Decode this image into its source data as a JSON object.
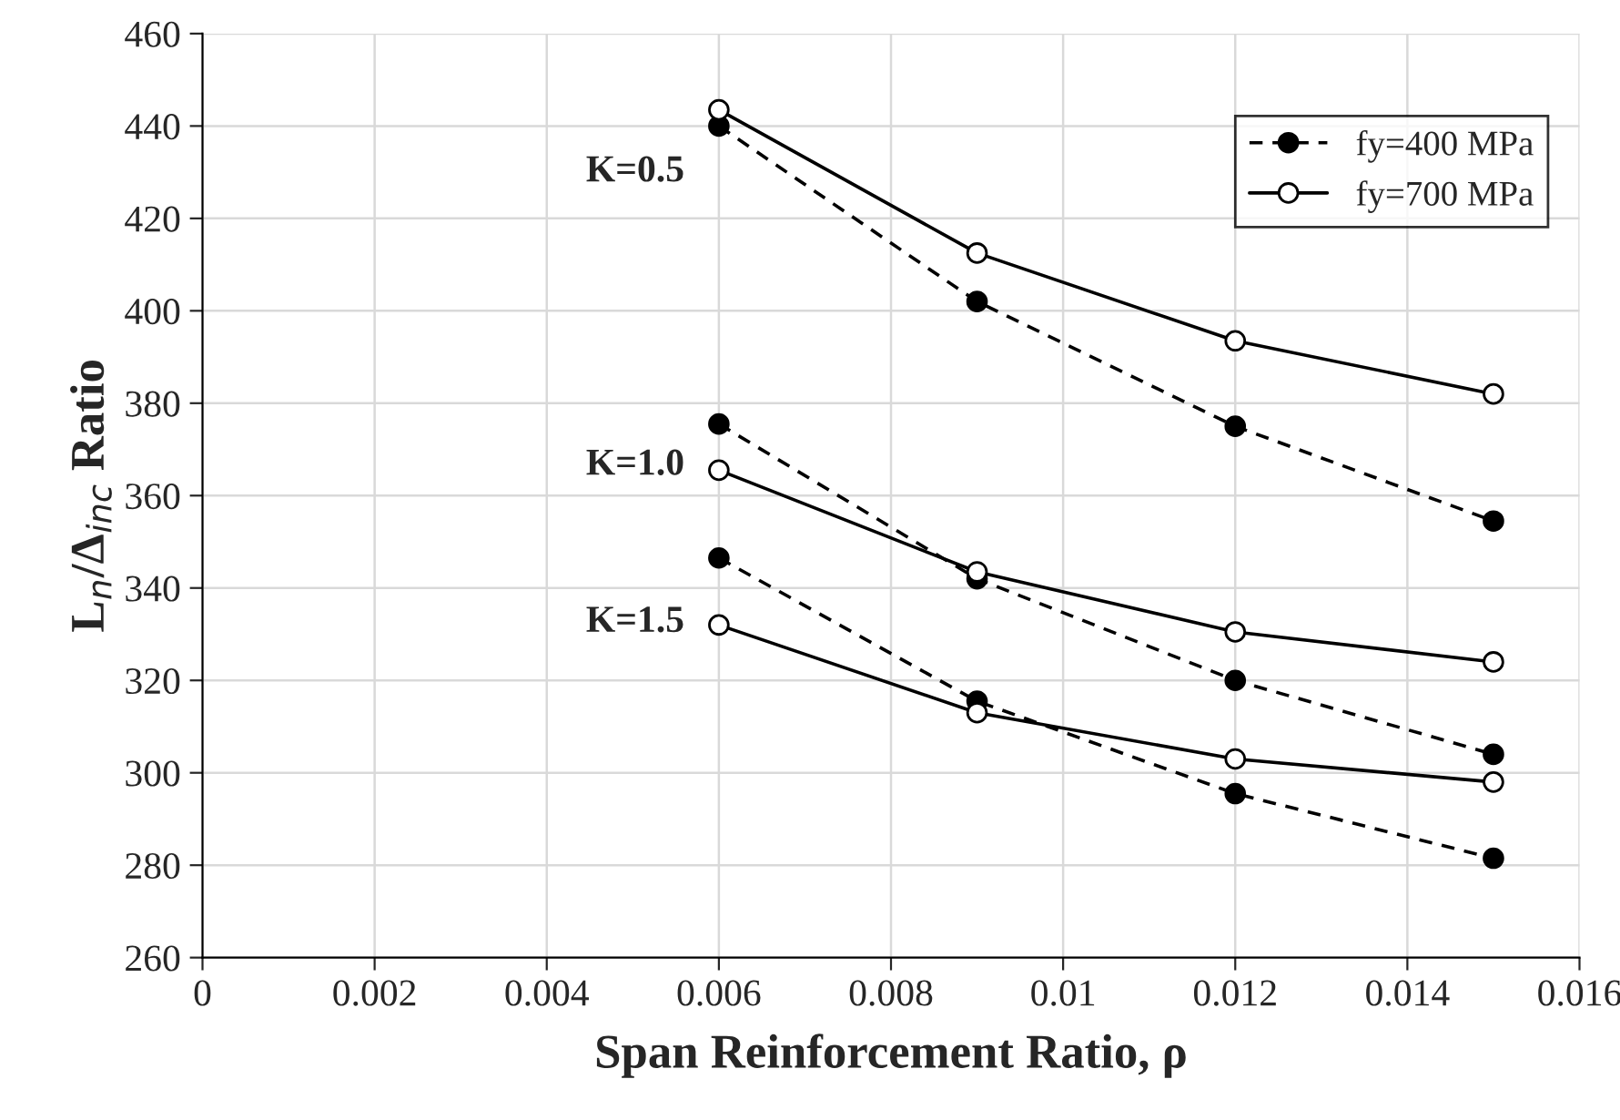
{
  "chart_data": {
    "type": "line",
    "xlabel": "Span Reinforcement Ratio, ρ",
    "ylabel": "L$_{n}$/Δ$_{inc}$ Ratio",
    "x": [
      0.006,
      0.009,
      0.012,
      0.015
    ],
    "series": [
      {
        "name": "fy=400 MPa",
        "color": "#000000",
        "line_style": "dashed",
        "values": [
          440,
          402,
          375,
          354.5
        ]
      },
      {
        "name": "fy=700 MPa",
        "color": "#000000",
        "line_style": "solid",
        "values": [
          443.5,
          412.5,
          393.5,
          382
        ]
      },
      {
        "color": "#000000",
        "line_style": "dashed",
        "values": [
          375.5,
          342,
          320,
          304
        ]
      },
      {
        "color": "#000000",
        "line_style": "solid",
        "values": [
          365.5,
          343.5,
          330.5,
          324
        ]
      },
      {
        "color": "#000000",
        "line_style": "dashed",
        "values": [
          346.5,
          315.5,
          295.5,
          281.5
        ]
      },
      {
        "color": "#000000",
        "line_style": "solid",
        "values": [
          332,
          313,
          303,
          298
        ]
      }
    ],
    "annotations": [
      "K=0.5",
      "K=1.0",
      "K=1.5"
    ],
    "marker": "circle",
    "xlim": [
      0,
      0.016
    ],
    "xticks": [
      0,
      0.002,
      0.004,
      0.006,
      0.008,
      0.01,
      0.012,
      0.014,
      0.016
    ],
    "ylim": [
      260,
      460
    ],
    "yticks": [
      260,
      280,
      300,
      320,
      340,
      360,
      380,
      400,
      420,
      440,
      460
    ],
    "grid": true,
    "legend": "top right"
  }
}
